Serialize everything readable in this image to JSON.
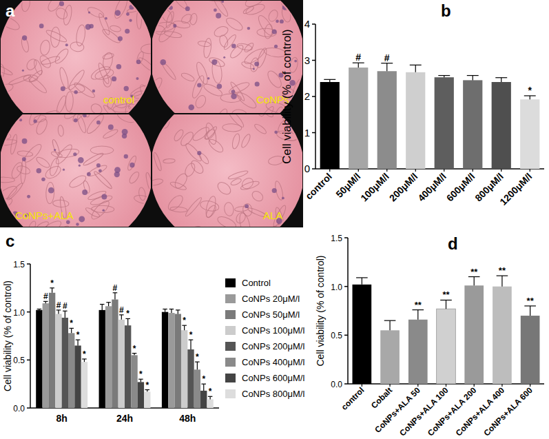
{
  "image_panel": {
    "title": "a",
    "labels": [
      "control",
      "CoNPs",
      "CoNPs+ALA",
      "ALA"
    ]
  },
  "chart_data": [
    {
      "type": "bar",
      "title": "b",
      "y_label": "Cell viability (% of control)",
      "categories": [
        "control",
        "50μM/l",
        "100μM/l",
        "200μM/l",
        "400μM/l",
        "600μM/l",
        "800μM/l",
        "1200μM/l"
      ],
      "values": [
        2.4,
        2.8,
        2.7,
        2.67,
        2.53,
        2.45,
        2.4,
        1.92
      ],
      "error": [
        0.07,
        0.13,
        0.22,
        0.2,
        0.05,
        0.13,
        0.12,
        0.1
      ],
      "annotations": [
        null,
        "#",
        "#",
        null,
        null,
        null,
        null,
        "*"
      ],
      "colors": [
        "#000000",
        "#a6a6a6",
        "#8c8c8c",
        "#cfcfcf",
        "#5e5e5e",
        "#6e6e6e",
        "#4f4f4f",
        "#dcdcdc"
      ],
      "ylim": [
        0,
        4
      ],
      "yticks": [
        0,
        1,
        2,
        3,
        4
      ]
    },
    {
      "type": "bar",
      "title": "c",
      "y_label": "Cell viability (% of control)",
      "categories": [
        "8h",
        "24h",
        "48h"
      ],
      "series": [
        {
          "name": "Control",
          "color": "#000000",
          "values": [
            1.02,
            1.02,
            1.0
          ],
          "error": [
            0.01,
            0.06,
            0.03
          ],
          "annotations": [
            null,
            null,
            null
          ]
        },
        {
          "name": "CoNPs 20μM/l",
          "color": "#9a9a9a",
          "values": [
            1.09,
            1.06,
            0.99
          ],
          "error": [
            0.02,
            0.04,
            0.04
          ],
          "annotations": [
            "#",
            null,
            null
          ]
        },
        {
          "name": "CoNPs 50μM/l",
          "color": "#7a7a7a",
          "values": [
            1.2,
            1.13,
            0.98
          ],
          "error": [
            0.05,
            0.07,
            0.04
          ],
          "annotations": [
            "*",
            "#",
            null
          ]
        },
        {
          "name": "CoNPs 100μM/l",
          "color": "#cccccc",
          "values": [
            0.98,
            0.92,
            0.81
          ],
          "error": [
            0.04,
            0.05,
            0.05
          ],
          "annotations": [
            "#",
            "#",
            "*"
          ]
        },
        {
          "name": "CoNPs 200μM/l",
          "color": "#555555",
          "values": [
            0.94,
            0.86,
            0.61
          ],
          "error": [
            0.07,
            0.07,
            0.1
          ],
          "annotations": [
            "#",
            "*",
            "*"
          ]
        },
        {
          "name": "CoNPs 400μM/l",
          "color": "#8a8a8a",
          "values": [
            0.78,
            0.55,
            0.4
          ],
          "error": [
            0.05,
            0.02,
            0.08
          ],
          "annotations": [
            "*",
            "*",
            "*"
          ]
        },
        {
          "name": "CoNPs 600μM/l",
          "color": "#444444",
          "values": [
            0.65,
            0.27,
            0.18
          ],
          "error": [
            0.06,
            0.03,
            0.07
          ],
          "annotations": [
            "*",
            "*",
            "*"
          ]
        },
        {
          "name": "CoNPs 800μM/l",
          "color": "#dddddd",
          "values": [
            0.48,
            0.17,
            0.09
          ],
          "error": [
            0.03,
            0.02,
            0.03
          ],
          "annotations": [
            "*",
            "*",
            "*"
          ]
        }
      ],
      "ylim": [
        0,
        1.5
      ],
      "yticks": [
        {
          "value": 0,
          "label": "0.0"
        },
        0.5,
        {
          "value": 1,
          "label": "1.0"
        },
        1.5
      ],
      "legend": "right"
    },
    {
      "type": "bar",
      "title": "d",
      "y_label": "Cell viability (% of control)",
      "categories": [
        "control",
        "Cobalt",
        "CoNPs+ALA 50",
        "CoNPs+ALA 100",
        "CoNPs+ALA 200",
        "CoNPs+ALA 400",
        "CoNPs+ALA 600"
      ],
      "values": [
        1.02,
        0.55,
        0.66,
        0.77,
        1.01,
        1.0,
        0.7
      ],
      "error": [
        0.07,
        0.1,
        0.1,
        0.09,
        0.09,
        0.11,
        0.1
      ],
      "annotations": [
        null,
        null,
        "**",
        "**",
        "**",
        "**",
        "**"
      ],
      "colors": [
        "#000000",
        "#a8a8a8",
        "#8a8a8a",
        "#d0d0d0",
        "#9a9a9a",
        "#bdbdbd",
        "#777777"
      ],
      "ylim": [
        0,
        1.5
      ],
      "yticks": [
        {
          "value": 0,
          "label": "0.0"
        },
        0.5,
        {
          "value": 1,
          "label": "1.0"
        },
        1.5
      ]
    }
  ]
}
